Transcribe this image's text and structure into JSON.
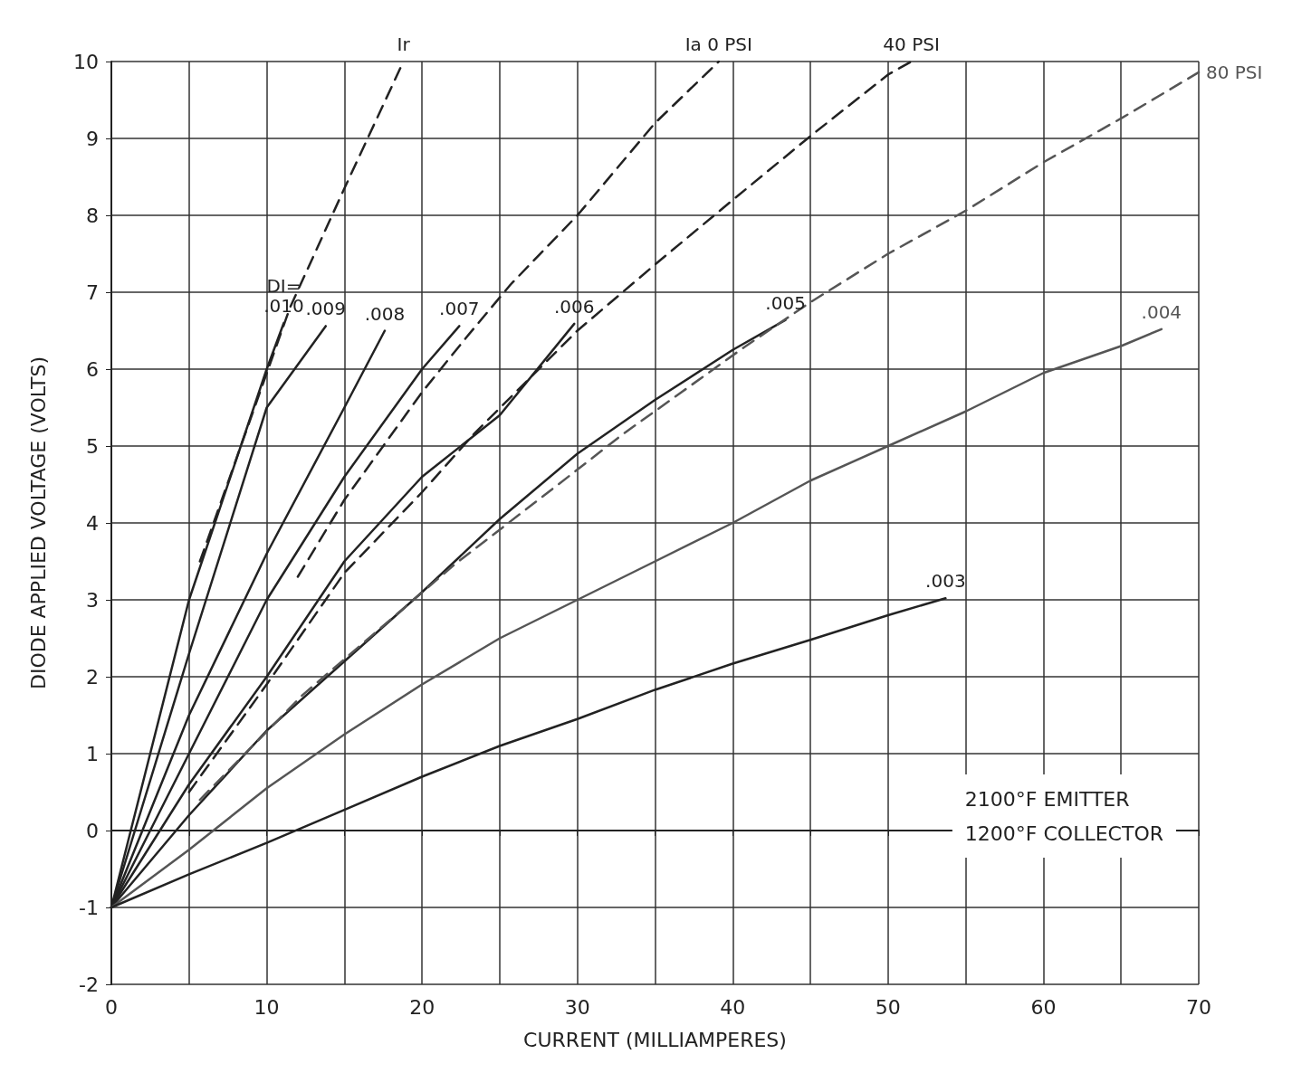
{
  "chart_data": {
    "type": "line",
    "xlabel": "CURRENT (MILLIAMPERES)",
    "ylabel": "DIODE APPLIED VOLTAGE (VOLTS)",
    "xlim": [
      0,
      70
    ],
    "ylim": [
      -2,
      10
    ],
    "xticks": [
      0,
      {
        "value": 5,
        "label": null
      },
      10,
      {
        "value": 15,
        "label": null
      },
      20,
      {
        "value": 25,
        "label": null
      },
      30,
      {
        "value": 35,
        "label": null
      },
      40,
      {
        "value": 45,
        "label": null
      },
      50,
      {
        "value": 55,
        "label": null
      },
      60,
      {
        "value": 65,
        "label": null
      },
      70
    ],
    "yticks": [
      -2,
      -1,
      0,
      1,
      2,
      3,
      4,
      5,
      6,
      7,
      8,
      9,
      10
    ],
    "grid": true,
    "legend": false,
    "marker": "none",
    "series": [
      {
        "name": "DI=\n.010",
        "color": "#222222",
        "line_style": "solid",
        "x": [
          0,
          5,
          10,
          11.1
        ],
        "values": [
          -1,
          3.0,
          6.0,
          6.6
        ]
      },
      {
        "name": ".009",
        "color": "#222222",
        "line_style": "solid",
        "x": [
          0,
          5,
          10,
          13.8
        ],
        "values": [
          -1,
          2.3,
          5.5,
          6.56
        ]
      },
      {
        "name": ".008",
        "color": "#222222",
        "line_style": "solid",
        "x": [
          0,
          5,
          10,
          15,
          17.6
        ],
        "values": [
          -1,
          1.5,
          3.6,
          5.5,
          6.5
        ]
      },
      {
        "name": ".007",
        "color": "#222222",
        "line_style": "solid",
        "x": [
          0,
          5,
          10,
          15,
          20,
          22.4
        ],
        "values": [
          -1,
          1.0,
          3.0,
          4.6,
          6.0,
          6.56
        ]
      },
      {
        "name": ".006",
        "color": "#222222",
        "line_style": "solid",
        "x": [
          0,
          5,
          10,
          15,
          20,
          25,
          29.8
        ],
        "values": [
          -1,
          0.6,
          2.0,
          3.5,
          4.6,
          5.4,
          6.59
        ]
      },
      {
        "name": ".005",
        "color": "#222222",
        "line_style": "solid",
        "x": [
          0,
          5,
          10,
          15,
          20,
          25,
          30,
          35,
          40,
          43.4
        ],
        "values": [
          -1,
          0.2,
          1.3,
          2.2,
          3.1,
          4.05,
          4.9,
          5.6,
          6.25,
          6.64
        ]
      },
      {
        "name": ".004",
        "color": "#555555",
        "line_style": "solid",
        "x": [
          0,
          5,
          10,
          15,
          20,
          25,
          30,
          35,
          40,
          45,
          50,
          55,
          60,
          65,
          67.6
        ],
        "values": [
          -1,
          -0.25,
          0.55,
          1.25,
          1.9,
          2.5,
          3.0,
          3.5,
          4.0,
          4.55,
          5.0,
          5.45,
          5.95,
          6.3,
          6.52
        ]
      },
      {
        "name": ".003",
        "color": "#222222",
        "line_style": "solid",
        "x": [
          0,
          5,
          10,
          15,
          20,
          25,
          30,
          35,
          40,
          45,
          50,
          53.7
        ],
        "values": [
          -1,
          -0.57,
          -0.16,
          0.27,
          0.7,
          1.1,
          1.45,
          1.83,
          2.17,
          2.48,
          2.8,
          3.02
        ]
      },
      {
        "name": "Ir",
        "color": "#222222",
        "line_style": "dashed",
        "x": [
          5.7,
          11.5,
          15,
          18.8
        ],
        "values": [
          3.5,
          6.8,
          8.35,
          10
        ]
      },
      {
        "name": "Ia 0 PSI",
        "color": "#222222",
        "line_style": "dashed",
        "x": [
          12,
          15,
          20,
          22.8,
          25.7,
          30,
          35,
          39.1
        ],
        "values": [
          3.3,
          4.3,
          5.7,
          6.4,
          7.1,
          8.0,
          9.2,
          10
        ]
      },
      {
        "name": "40 PSI",
        "color": "#222222",
        "line_style": "dashed",
        "x": [
          5,
          10,
          15,
          20,
          23.4,
          30,
          35,
          40,
          45,
          50,
          51.5
        ],
        "values": [
          0.5,
          1.9,
          3.35,
          4.4,
          5.17,
          6.5,
          7.36,
          8.2,
          9.03,
          9.83,
          10
        ]
      },
      {
        "name": "80 PSI",
        "color": "#555555",
        "line_style": "dashed",
        "x": [
          5.7,
          12.3,
          22.1,
          29.6,
          32.9,
          36.7,
          40.7,
          45,
          50,
          55,
          60,
          65,
          70
        ],
        "values": [
          0.4,
          1.76,
          3.46,
          4.63,
          5.15,
          5.7,
          6.28,
          6.87,
          7.5,
          8.06,
          8.69,
          9.26,
          9.86
        ]
      }
    ],
    "annotations": [
      "2100°F EMITTER",
      "1200°F COLLECTOR"
    ]
  }
}
